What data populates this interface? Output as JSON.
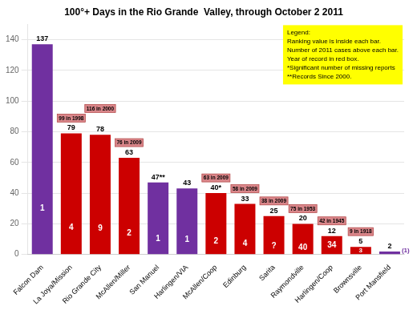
{
  "chart_data": {
    "type": "bar",
    "title": "100°+ Days in the Rio Grande  Valley, through October 2 2011",
    "categories": [
      "Falcon Dam",
      "La Joya/Mission",
      "Rio Grande City",
      "McAllen/Miller",
      "San Manuel",
      "Harlingen/VIA",
      "McAllen/Coop",
      "Edinburg",
      "Sarita",
      "Raymondville",
      "Harlingen/Coop",
      "Brownsville",
      "Port Mansfield"
    ],
    "values": [
      137,
      79,
      78,
      63,
      47,
      43,
      40,
      33,
      25,
      20,
      12,
      5,
      2
    ],
    "colors": [
      "#7030a0",
      "#cc0000",
      "#cc0000",
      "#cc0000",
      "#7030a0",
      "#7030a0",
      "#cc0000",
      "#cc0000",
      "#cc0000",
      "#cc0000",
      "#cc0000",
      "#cc0000",
      "#7030a0"
    ],
    "ylim": [
      0,
      150
    ],
    "yticks": [
      0,
      20,
      40,
      60,
      80,
      100,
      120,
      140
    ],
    "grid": true,
    "data_labels": true,
    "value_labels": [
      "137",
      "79",
      "78",
      "63",
      "47**",
      "43",
      "40*",
      "33",
      "25",
      "20",
      "12",
      "5",
      "2"
    ],
    "rank_labels": [
      "1",
      "4",
      "9",
      "2",
      "1",
      "1",
      "2",
      "4",
      "?",
      "40",
      "34",
      "3",
      "(1)"
    ],
    "record_labels": [
      null,
      "99 in 1998",
      "116 in 2000",
      "76 in 2009",
      null,
      null,
      "63 in 2009",
      "58 in 2009",
      "38 in 2009",
      "75 in 1953",
      "42 in 1945",
      "9 in 1918",
      null
    ],
    "annotation": "Legend:\nRanking value is inside each bar.\nNumber of 2011 cases above each bar.\nYear of record in red box.\n*Significant number of missing reports\n**Records Since 2000."
  }
}
